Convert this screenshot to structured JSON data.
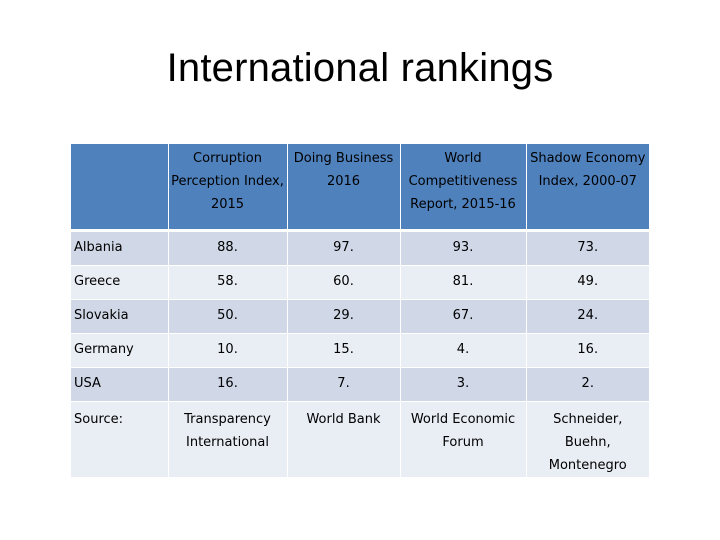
{
  "title": "International rankings",
  "table": {
    "headers": [
      "",
      "Corruption Perception Index, 2015",
      "Doing Business 2016",
      "World Competitiveness Report, 2015-16",
      "Shadow Economy Index, 2000-07"
    ],
    "rows": [
      {
        "country": "Albania",
        "values": [
          "88.",
          "97.",
          "93.",
          "73."
        ]
      },
      {
        "country": "Greece",
        "values": [
          "58.",
          "60.",
          "81.",
          "49."
        ]
      },
      {
        "country": "Slovakia",
        "values": [
          "50.",
          "29.",
          "67.",
          "24."
        ]
      },
      {
        "country": "Germany",
        "values": [
          "10.",
          "15.",
          "4.",
          "16."
        ]
      },
      {
        "country": "USA",
        "values": [
          "16.",
          "7.",
          "3.",
          "2."
        ]
      }
    ],
    "source": {
      "label": "Source:",
      "values": [
        "Transparency International",
        "World Bank",
        "World Economic Forum",
        "Schneider, Buehn, Montenegro"
      ]
    }
  },
  "colors": {
    "header": "#4f81bd",
    "row_dark": "#d0d8e8",
    "row_light": "#e9edf4"
  }
}
